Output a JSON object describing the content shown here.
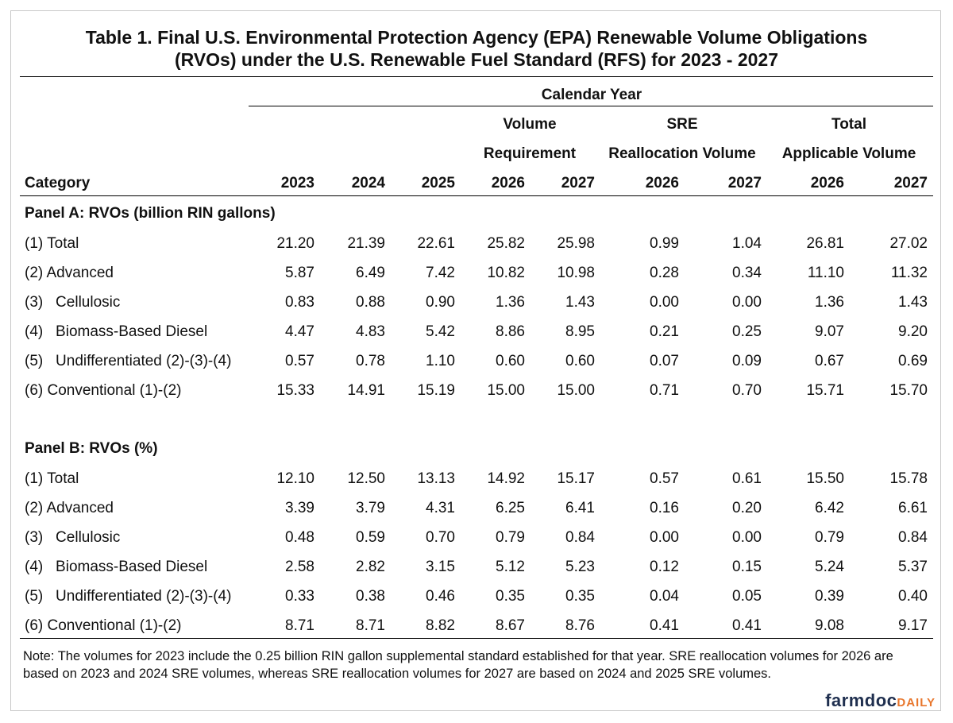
{
  "title": [
    "Table 1. Final U.S. Environmental Protection Agency (EPA) Renewable Volume Obligations",
    "(RVOs) under the U.S. Renewable Fuel Standard (RFS) for 2023 - 2027"
  ],
  "header": {
    "group": "Calendar Year",
    "subgroups": [
      [
        "Volume",
        "Requirement"
      ],
      [
        "SRE",
        "Reallocation Volume"
      ],
      [
        "Total",
        "Applicable Volume"
      ]
    ],
    "columns": [
      "Category",
      "2023",
      "2024",
      "2025",
      "2026",
      "2027",
      "2026",
      "2027",
      "2026",
      "2027"
    ]
  },
  "panels": [
    {
      "title": "Panel A: RVOs (billion RIN gallons)",
      "rows": [
        [
          "(1) Total",
          "21.20",
          "21.39",
          "22.61",
          "25.82",
          "25.98",
          "0.99",
          "1.04",
          "26.81",
          "27.02"
        ],
        [
          "(2) Advanced",
          "5.87",
          "6.49",
          "7.42",
          "10.82",
          "10.98",
          "0.28",
          "0.34",
          "11.10",
          "11.32"
        ],
        [
          "(3)   Cellulosic",
          "0.83",
          "0.88",
          "0.90",
          "1.36",
          "1.43",
          "0.00",
          "0.00",
          "1.36",
          "1.43"
        ],
        [
          "(4)   Biomass-Based Diesel",
          "4.47",
          "4.83",
          "5.42",
          "8.86",
          "8.95",
          "0.21",
          "0.25",
          "9.07",
          "9.20"
        ],
        [
          "(5)   Undifferentiated (2)-(3)-(4)",
          "0.57",
          "0.78",
          "1.10",
          "0.60",
          "0.60",
          "0.07",
          "0.09",
          "0.67",
          "0.69"
        ],
        [
          "(6) Conventional (1)-(2)",
          "15.33",
          "14.91",
          "15.19",
          "15.00",
          "15.00",
          "0.71",
          "0.70",
          "15.71",
          "15.70"
        ]
      ]
    },
    {
      "title": "Panel B: RVOs (%)",
      "rows": [
        [
          "(1) Total",
          "12.10",
          "12.50",
          "13.13",
          "14.92",
          "15.17",
          "0.57",
          "0.61",
          "15.50",
          "15.78"
        ],
        [
          "(2) Advanced",
          "3.39",
          "3.79",
          "4.31",
          "6.25",
          "6.41",
          "0.16",
          "0.20",
          "6.42",
          "6.61"
        ],
        [
          "(3)   Cellulosic",
          "0.48",
          "0.59",
          "0.70",
          "0.79",
          "0.84",
          "0.00",
          "0.00",
          "0.79",
          "0.84"
        ],
        [
          "(4)   Biomass-Based Diesel",
          "2.58",
          "2.82",
          "3.15",
          "5.12",
          "5.23",
          "0.12",
          "0.15",
          "5.24",
          "5.37"
        ],
        [
          "(5)   Undifferentiated (2)-(3)-(4)",
          "0.33",
          "0.38",
          "0.46",
          "0.35",
          "0.35",
          "0.04",
          "0.05",
          "0.39",
          "0.40"
        ],
        [
          "(6) Conventional (1)-(2)",
          "8.71",
          "8.71",
          "8.82",
          "8.67",
          "8.76",
          "0.41",
          "0.41",
          "9.08",
          "9.17"
        ]
      ]
    }
  ],
  "note": "Note: The volumes for 2023 include the 0.25 billion RIN gallon supplemental standard established for that year. SRE reallocation volumes for 2026 are based on 2023 and 2024 SRE volumes, whereas SRE reallocation volumes for 2027 are based on 2024 and 2025 SRE volumes.",
  "logo": {
    "main": "farmdoc",
    "accent": "DAILY"
  }
}
